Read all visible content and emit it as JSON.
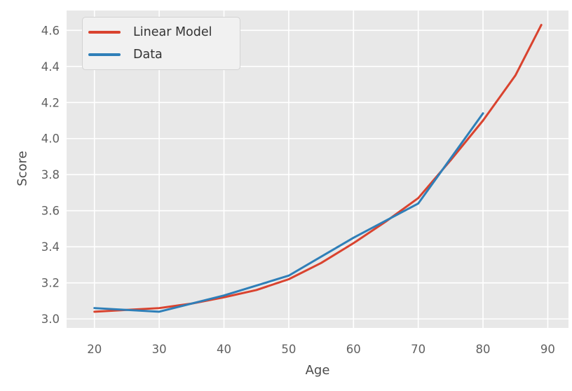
{
  "chart_data": {
    "type": "line",
    "title": "",
    "xlabel": "Age",
    "ylabel": "Score",
    "x_ticks": [
      20,
      30,
      40,
      50,
      60,
      70,
      80,
      90
    ],
    "y_ticks": [
      "3.0",
      "3.2",
      "3.4",
      "3.6",
      "3.8",
      "4.0",
      "4.2",
      "4.4",
      "4.6"
    ],
    "xlim": [
      15.7,
      93.2
    ],
    "ylim": [
      2.95,
      4.71
    ],
    "grid": true,
    "legend_position": "upper-left",
    "series": [
      {
        "name": "Linear Model",
        "color": "#d9432f",
        "x": [
          20,
          25,
          30,
          35,
          40,
          45,
          50,
          55,
          60,
          65,
          70,
          75,
          80,
          85,
          89
        ],
        "y": [
          3.04,
          3.05,
          3.06,
          3.085,
          3.12,
          3.16,
          3.22,
          3.31,
          3.42,
          3.54,
          3.67,
          3.88,
          4.1,
          4.35,
          4.63
        ]
      },
      {
        "name": "Data",
        "color": "#2f7fb8",
        "x": [
          20,
          30,
          40,
          50,
          60,
          70,
          80
        ],
        "y": [
          3.06,
          3.04,
          3.13,
          3.24,
          3.45,
          3.64,
          4.14
        ]
      }
    ]
  },
  "colors": {
    "figure_bg": "#ffffff",
    "plot_bg": "#e8e8e8",
    "grid": "#ffffff",
    "tick": "#616161",
    "axis_label": "#4a4a4a",
    "legend_bg": "#f1f1f1",
    "legend_border": "#d3d3d3",
    "legend_text": "#333333"
  }
}
